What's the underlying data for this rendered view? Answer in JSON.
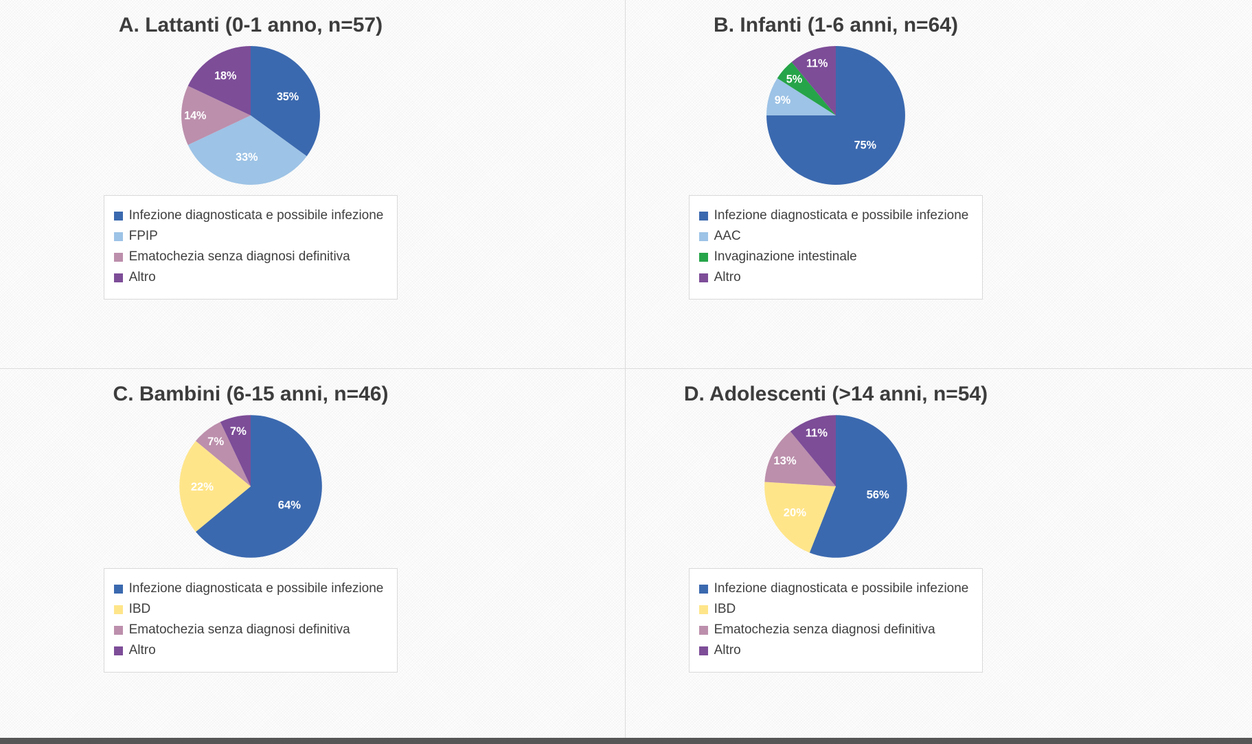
{
  "figure": {
    "description": "Panel of four pie charts by age group",
    "panel_count": 4
  },
  "chart_data": [
    {
      "type": "pie",
      "panel": "A",
      "title": "A. Lattanti (0-1 anno, n=57)",
      "n": 57,
      "labels": [
        "Infezione diagnosticata e possibile infezione",
        "FPIP",
        "Ematochezia senza diagnosi definitiva",
        "Altro"
      ],
      "values": [
        35,
        33,
        14,
        18
      ],
      "pct_labels": [
        "35%",
        "33%",
        "14%",
        "18%"
      ],
      "colors": [
        "#3B69AF",
        "#9DC3E6",
        "#BC8FAC",
        "#7D4D98"
      ],
      "legend_position": "bottom",
      "start_angle": "top",
      "direction": "clockwise"
    },
    {
      "type": "pie",
      "panel": "B",
      "title": "B. Infanti (1-6 anni, n=64)",
      "n": 64,
      "labels": [
        "Infezione diagnosticata e possibile infezione",
        "AAC",
        "Invaginazione intestinale",
        "Altro"
      ],
      "values": [
        75,
        9,
        5,
        11
      ],
      "pct_labels": [
        "75%",
        "9%",
        "5%",
        "11%"
      ],
      "colors": [
        "#3B69AF",
        "#9DC3E6",
        "#26A449",
        "#7D4D98"
      ],
      "legend_position": "bottom",
      "start_angle": "top",
      "direction": "clockwise"
    },
    {
      "type": "pie",
      "panel": "C",
      "title": "C. Bambini (6-15 anni, n=46)",
      "n": 46,
      "labels": [
        "Infezione diagnosticata e possibile infezione",
        "IBD",
        "Ematochezia senza diagnosi definitiva",
        "Altro"
      ],
      "values": [
        64,
        22,
        7,
        7
      ],
      "pct_labels": [
        "64%",
        "22%",
        "7%",
        "7%"
      ],
      "colors": [
        "#3B69AF",
        "#FFE58A",
        "#BC8FAC",
        "#7D4D98"
      ],
      "legend_position": "bottom",
      "start_angle": "top",
      "direction": "clockwise"
    },
    {
      "type": "pie",
      "panel": "D",
      "title": "D. Adolescenti (>14 anni, n=54)",
      "n": 54,
      "labels": [
        "Infezione diagnosticata e possibile infezione",
        "IBD",
        "Ematochezia senza diagnosi definitiva",
        "Altro"
      ],
      "values": [
        56,
        20,
        13,
        11
      ],
      "pct_labels": [
        "56%",
        "20%",
        "13%",
        "11%"
      ],
      "colors": [
        "#3B69AF",
        "#FFE58A",
        "#BC8FAC",
        "#7D4D98"
      ],
      "legend_position": "bottom",
      "start_angle": "top",
      "direction": "clockwise"
    }
  ]
}
